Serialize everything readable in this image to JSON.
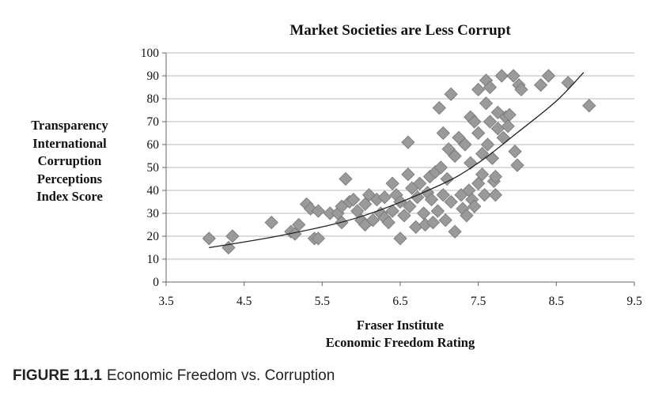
{
  "caption": {
    "figure_number": "FIGURE 11.1",
    "text": "Economic Freedom vs. Corruption"
  },
  "chart_data": {
    "type": "scatter",
    "title": "Market Societies are Less Corrupt",
    "ylabel_lines": [
      "Transparency",
      "International",
      "Corruption",
      "Perceptions",
      "Index Score"
    ],
    "xlabel_lines": [
      "Fraser Institute",
      "Economic Freedom Rating"
    ],
    "xlim": [
      3.5,
      9.5
    ],
    "ylim": [
      0,
      100
    ],
    "x_ticks": [
      "3.5",
      "4.5",
      "5.5",
      "6.5",
      "7.5",
      "8.5",
      "9.5"
    ],
    "y_ticks": [
      "0",
      "10",
      "20",
      "30",
      "40",
      "50",
      "60",
      "70",
      "80",
      "90",
      "100"
    ],
    "grid": "horizontal",
    "marker": "diamond",
    "marker_color": "#9a9a9a",
    "trendline": {
      "type": "exponential",
      "color": "#222222",
      "points": [
        [
          4.05,
          15
        ],
        [
          5.0,
          20.5
        ],
        [
          6.0,
          28.6
        ],
        [
          7.0,
          42.2
        ],
        [
          7.5,
          52.0
        ],
        [
          8.0,
          65.2
        ],
        [
          8.5,
          79.0
        ],
        [
          8.85,
          91.5
        ]
      ]
    },
    "points": [
      [
        4.05,
        19
      ],
      [
        4.3,
        15
      ],
      [
        4.35,
        20
      ],
      [
        4.85,
        26
      ],
      [
        5.1,
        22
      ],
      [
        5.15,
        21
      ],
      [
        5.2,
        25
      ],
      [
        5.3,
        34
      ],
      [
        5.35,
        32
      ],
      [
        5.4,
        19
      ],
      [
        5.45,
        19
      ],
      [
        5.45,
        31
      ],
      [
        5.6,
        30
      ],
      [
        5.7,
        30
      ],
      [
        5.75,
        33
      ],
      [
        5.75,
        26
      ],
      [
        5.8,
        45
      ],
      [
        5.85,
        35
      ],
      [
        5.9,
        36
      ],
      [
        5.95,
        31
      ],
      [
        6.0,
        27
      ],
      [
        6.05,
        25
      ],
      [
        6.05,
        34
      ],
      [
        6.1,
        38
      ],
      [
        6.15,
        27
      ],
      [
        6.2,
        36
      ],
      [
        6.25,
        30
      ],
      [
        6.3,
        28
      ],
      [
        6.3,
        37
      ],
      [
        6.35,
        26
      ],
      [
        6.4,
        43
      ],
      [
        6.4,
        31
      ],
      [
        6.45,
        38
      ],
      [
        6.5,
        19
      ],
      [
        6.5,
        35
      ],
      [
        6.55,
        29
      ],
      [
        6.6,
        47
      ],
      [
        6.6,
        61
      ],
      [
        6.62,
        33
      ],
      [
        6.65,
        41
      ],
      [
        6.7,
        24
      ],
      [
        6.72,
        37
      ],
      [
        6.75,
        43
      ],
      [
        6.8,
        30
      ],
      [
        6.82,
        25
      ],
      [
        6.85,
        39
      ],
      [
        6.88,
        46
      ],
      [
        6.9,
        36
      ],
      [
        6.92,
        26
      ],
      [
        6.95,
        48
      ],
      [
        6.98,
        31
      ],
      [
        7.0,
        76
      ],
      [
        7.02,
        50
      ],
      [
        7.05,
        38
      ],
      [
        7.05,
        65
      ],
      [
        7.08,
        27
      ],
      [
        7.1,
        45
      ],
      [
        7.12,
        58
      ],
      [
        7.15,
        82
      ],
      [
        7.15,
        35
      ],
      [
        7.2,
        22
      ],
      [
        7.2,
        55
      ],
      [
        7.25,
        63
      ],
      [
        7.28,
        38
      ],
      [
        7.3,
        32
      ],
      [
        7.33,
        60
      ],
      [
        7.35,
        29
      ],
      [
        7.38,
        40
      ],
      [
        7.4,
        52
      ],
      [
        7.4,
        72
      ],
      [
        7.42,
        36
      ],
      [
        7.45,
        70
      ],
      [
        7.45,
        33
      ],
      [
        7.5,
        84
      ],
      [
        7.5,
        65
      ],
      [
        7.5,
        43
      ],
      [
        7.55,
        47
      ],
      [
        7.55,
        56
      ],
      [
        7.58,
        38
      ],
      [
        7.6,
        78
      ],
      [
        7.6,
        88
      ],
      [
        7.62,
        60
      ],
      [
        7.65,
        70
      ],
      [
        7.65,
        85
      ],
      [
        7.68,
        54
      ],
      [
        7.7,
        44
      ],
      [
        7.72,
        46
      ],
      [
        7.72,
        38
      ],
      [
        7.75,
        74
      ],
      [
        7.75,
        67
      ],
      [
        7.8,
        90
      ],
      [
        7.82,
        63
      ],
      [
        7.85,
        72
      ],
      [
        7.88,
        68
      ],
      [
        7.9,
        73
      ],
      [
        7.95,
        90
      ],
      [
        7.97,
        57
      ],
      [
        8.0,
        51
      ],
      [
        8.02,
        86
      ],
      [
        8.05,
        84
      ],
      [
        8.3,
        86
      ],
      [
        8.4,
        90
      ],
      [
        8.65,
        87
      ],
      [
        8.92,
        77
      ]
    ]
  }
}
